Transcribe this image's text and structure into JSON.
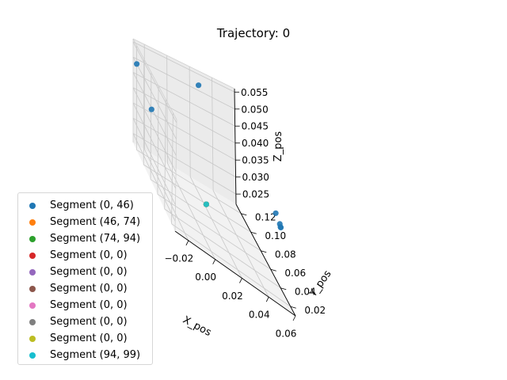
{
  "chart_data": {
    "type": "scatter",
    "projection": "3d",
    "title": "Trajectory: 0",
    "xlabel": "X_pos",
    "ylabel": "Y_pos",
    "zlabel": "Z_pos",
    "xlim": [
      -0.03,
      0.06
    ],
    "ylim": [
      0.01,
      0.13
    ],
    "zlim": [
      0.022,
      0.056
    ],
    "x_ticks": [
      -0.02,
      0.0,
      0.02,
      0.04,
      0.06
    ],
    "x_tick_labels": [
      "−0.02",
      "0.00",
      "0.02",
      "0.04",
      "0.06"
    ],
    "y_ticks": [
      0.02,
      0.04,
      0.06,
      0.08,
      0.1,
      0.12
    ],
    "y_tick_labels": [
      "0.02",
      "0.04",
      "0.06",
      "0.08",
      "0.10",
      "0.12"
    ],
    "z_ticks": [
      0.025,
      0.03,
      0.035,
      0.04,
      0.045,
      0.05,
      0.055
    ],
    "z_tick_labels": [
      "0.025",
      "0.030",
      "0.035",
      "0.040",
      "0.045",
      "0.050",
      "0.055"
    ],
    "grid": true,
    "legend_position": "lower-left",
    "series": [
      {
        "name": "Segment (0, 46)",
        "color": "#1f77b4",
        "points": [
          [
            -0.03,
            0.12,
            0.05
          ],
          [
            -0.025,
            0.095,
            0.042
          ],
          [
            0.02,
            0.11,
            0.055
          ],
          [
            0.06,
            0.051,
            0.04
          ],
          [
            0.06,
            0.043,
            0.039
          ],
          [
            0.06,
            0.0415,
            0.0385
          ],
          [
            0.06,
            0.041,
            0.0385
          ]
        ]
      },
      {
        "name": "Segment (46, 74)",
        "color": "#ff7f0e",
        "points": [
          [
            0.012,
            0.07,
            0.027
          ]
        ]
      },
      {
        "name": "Segment (74, 94)",
        "color": "#2ca02c",
        "points": [
          [
            0.012,
            0.07,
            0.027
          ]
        ]
      },
      {
        "name": "Segment (0, 0)",
        "color": "#d62728",
        "points": [
          [
            0.012,
            0.07,
            0.027
          ]
        ]
      },
      {
        "name": "Segment (0, 0)",
        "color": "#9467bd",
        "points": [
          [
            0.012,
            0.07,
            0.027
          ]
        ]
      },
      {
        "name": "Segment (0, 0)",
        "color": "#8c564b",
        "points": [
          [
            0.012,
            0.07,
            0.027
          ]
        ]
      },
      {
        "name": "Segment (0, 0)",
        "color": "#e377c2",
        "points": [
          [
            0.012,
            0.07,
            0.027
          ]
        ]
      },
      {
        "name": "Segment (0, 0)",
        "color": "#7f7f7f",
        "points": [
          [
            0.012,
            0.07,
            0.027
          ]
        ]
      },
      {
        "name": "Segment (0, 0)",
        "color": "#bcbd22",
        "points": [
          [
            0.012,
            0.07,
            0.027
          ]
        ]
      },
      {
        "name": "Segment (94, 99)",
        "color": "#17becf",
        "points": [
          [
            0.012,
            0.07,
            0.027
          ]
        ]
      }
    ]
  }
}
